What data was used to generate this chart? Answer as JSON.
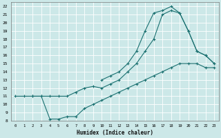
{
  "xlabel": "Humidex (Indice chaleur)",
  "bg_color": "#cce8e8",
  "grid_color": "#aacccc",
  "line_color": "#1a7070",
  "xlim": [
    -0.5,
    23.5
  ],
  "ylim": [
    8,
    22.5
  ],
  "xticks": [
    0,
    1,
    2,
    3,
    4,
    5,
    6,
    7,
    8,
    9,
    10,
    11,
    12,
    13,
    14,
    15,
    16,
    17,
    18,
    19,
    20,
    21,
    22,
    23
  ],
  "yticks": [
    8,
    9,
    10,
    11,
    12,
    13,
    14,
    15,
    16,
    17,
    18,
    19,
    20,
    21,
    22
  ],
  "line1_x": [
    0,
    1,
    2,
    3,
    4,
    5,
    6,
    7,
    8,
    9,
    10,
    11,
    12,
    13,
    14,
    15,
    16,
    17,
    18,
    19,
    20,
    21,
    22,
    23
  ],
  "line1_y": [
    11,
    11,
    11,
    11,
    8.2,
    8.2,
    8.5,
    8.5,
    9.5,
    10,
    10.5,
    11,
    11.5,
    12,
    12.5,
    13,
    13.5,
    14,
    14.5,
    15,
    15,
    15,
    14.5,
    14.5
  ],
  "line2_x": [
    2,
    3,
    4,
    5,
    6,
    7,
    8,
    9,
    10,
    11,
    12,
    13,
    14,
    15,
    16,
    17,
    18,
    19,
    20,
    21,
    22,
    23
  ],
  "line2_y": [
    11,
    11,
    11,
    11,
    11,
    11.5,
    12,
    12.2,
    12,
    12.5,
    13,
    14,
    15,
    16.5,
    18,
    21,
    21.5,
    21.2,
    19,
    16.5,
    16,
    15
  ],
  "line3_x": [
    10,
    11,
    12,
    13,
    14,
    15,
    16,
    17,
    18,
    19,
    20,
    21,
    22,
    23
  ],
  "line3_y": [
    13,
    13.5,
    14,
    15,
    16.5,
    19,
    21.2,
    21.5,
    22,
    21.2,
    19,
    16.5,
    16,
    15
  ]
}
